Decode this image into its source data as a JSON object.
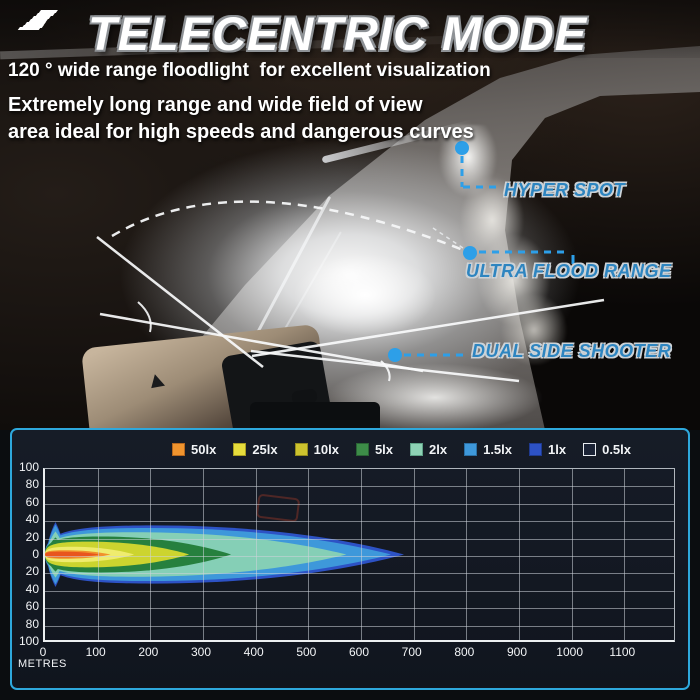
{
  "colors": {
    "callout_blue": "#2d9fe8",
    "panel_border": "#2ea8dc",
    "callout_text": "#2e85c0"
  },
  "header": {
    "title": "TELECENTRIC MODE",
    "line1": "120 ° wide range floodlight  for excellent visualization",
    "line2": "Extremely long range and wide field of view",
    "line3": "area ideal for high speeds and dangerous curves"
  },
  "callouts": {
    "hyper_spot": "HYPER SPOT",
    "ultra_flood": "ULTRA FLOOD RANGE",
    "dual_side": "DUAL SIDE SHOOTER"
  },
  "chart": {
    "x_unit_label": "METRES",
    "x_ticks": [
      "0",
      "100",
      "200",
      "300",
      "400",
      "500",
      "600",
      "700",
      "800",
      "900",
      "1000",
      "1100"
    ],
    "y_ticks": [
      "100",
      "80",
      "60",
      "40",
      "20",
      "0",
      "20",
      "40",
      "60",
      "80",
      "100"
    ],
    "legend": [
      {
        "label": "50lx",
        "color": "#f0942e",
        "border": "#b5671f"
      },
      {
        "label": "25lx",
        "color": "#e6dc3c",
        "border": "#a99e23"
      },
      {
        "label": "10lx",
        "color": "#cdc32e",
        "border": "#938b1e"
      },
      {
        "label": "5lx",
        "color": "#3d8c48",
        "border": "#2a6335"
      },
      {
        "label": "2lx",
        "color": "#8ed2b5",
        "border": "#5fa287"
      },
      {
        "label": "1.5lx",
        "color": "#3e98da",
        "border": "#2b6fa3"
      },
      {
        "label": "1lx",
        "color": "#2d52c5",
        "border": "#1f3a8f"
      },
      {
        "label": "0.5lx",
        "color": "#1b2335",
        "border": "#e8ecf0"
      }
    ],
    "beams": [
      {
        "label": "1lx",
        "color": "#2d52c5",
        "reach_m": 685,
        "half_width_m": 34,
        "start_fan_half_m": 38
      },
      {
        "label": "1.5lx",
        "color": "#3e98da",
        "reach_m": 660,
        "half_width_m": 31,
        "start_fan_half_m": 35
      },
      {
        "label": "2lx",
        "color": "#85cfb6",
        "reach_m": 575,
        "half_width_m": 26,
        "start_fan_half_m": 27
      },
      {
        "label": "5lx",
        "color": "#26803e",
        "reach_m": 355,
        "half_width_m": 21,
        "start_fan_half_m": 20
      },
      {
        "label": "10lx",
        "color": "#ccd42f",
        "reach_m": 275,
        "half_width_m": 15,
        "start_fan_half_m": null
      },
      {
        "label": "25lx",
        "color": "#efec6e",
        "reach_m": 170,
        "half_width_m": 9,
        "start_fan_half_m": null
      },
      {
        "label": "50lx",
        "color": "#f0902c",
        "reach_m": 125,
        "half_width_m": 5,
        "start_fan_half_m": null
      },
      {
        "label": "50lx-core",
        "color": "#e8551e",
        "reach_m": 105,
        "half_width_m": 3.4,
        "start_fan_half_m": null
      }
    ]
  },
  "chart_data": {
    "type": "area",
    "title": "Telecentric mode beam isolux pattern",
    "xlabel": "METRES",
    "ylabel": "",
    "x_range_m": [
      0,
      1200
    ],
    "x_tick_values": [
      0,
      100,
      200,
      300,
      400,
      500,
      600,
      700,
      800,
      900,
      1000,
      1100
    ],
    "y_range_m": [
      -100,
      100
    ],
    "y_tick_values_abs": [
      100,
      80,
      60,
      40,
      20,
      0,
      20,
      40,
      60,
      80,
      100
    ],
    "grid": true,
    "legend_position": "top",
    "series": [
      {
        "name": "50lx",
        "reach_m": 125,
        "max_half_width_m": 5
      },
      {
        "name": "25lx",
        "reach_m": 170,
        "max_half_width_m": 9
      },
      {
        "name": "10lx",
        "reach_m": 275,
        "max_half_width_m": 15
      },
      {
        "name": "5lx",
        "reach_m": 355,
        "max_half_width_m": 21
      },
      {
        "name": "2lx",
        "reach_m": 575,
        "max_half_width_m": 27
      },
      {
        "name": "1.5lx",
        "reach_m": 660,
        "max_half_width_m": 35
      },
      {
        "name": "1lx",
        "reach_m": 685,
        "max_half_width_m": 38
      },
      {
        "name": "0.5lx",
        "reach_m": null,
        "max_half_width_m": null
      }
    ]
  }
}
